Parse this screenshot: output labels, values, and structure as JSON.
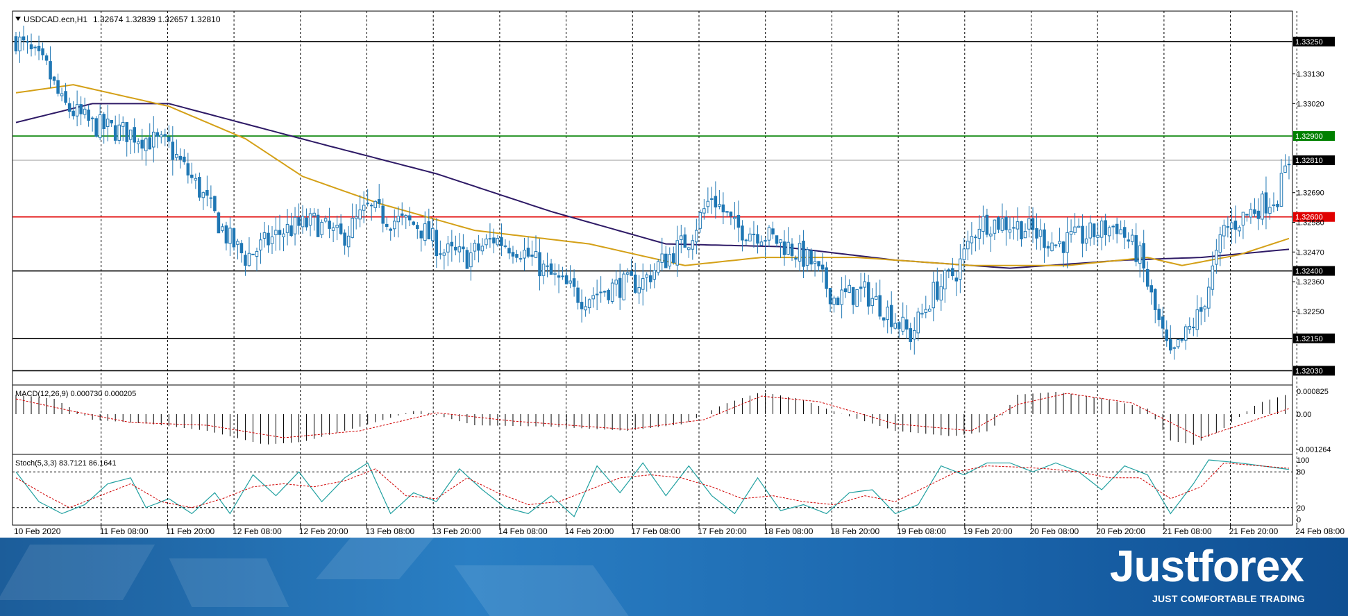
{
  "header": {
    "symbol_text": "USDCAD.ecn,H1",
    "ohlc_text": "1.32674 1.32839 1.32657 1.32810"
  },
  "colors": {
    "bull": "#ffffff",
    "bear": "#1f77b4",
    "candle_outline": "#1f77b4",
    "ma_slow": "#2e1a66",
    "ma_fast": "#d4a017",
    "support_resistance": "#000000",
    "green_level": "#008000",
    "red_level": "#e00000",
    "macd_signal": "#d00000",
    "stoch_main": "#20a0a0",
    "stoch_signal": "#d00000"
  },
  "chart_data": [
    {
      "type": "candlestick",
      "title": "USDCAD.ecn,H1",
      "ylim": [
        1.3199,
        1.3335
      ],
      "y_ticks": [
        "1.33250",
        "1.33130",
        "1.33020",
        "1.32900",
        "1.32810",
        "1.32690",
        "1.32580",
        "1.32470",
        "1.32360",
        "1.32250",
        "1.32150",
        "1.32030"
      ],
      "x_tick_labels": [
        "10 Feb 2020",
        "11 Feb 08:00",
        "11 Feb 20:00",
        "12 Feb 08:00",
        "12 Feb 20:00",
        "13 Feb 08:00",
        "13 Feb 20:00",
        "14 Feb 08:00",
        "14 Feb 20:00",
        "17 Feb 08:00",
        "17 Feb 20:00",
        "18 Feb 08:00",
        "18 Feb 20:00",
        "19 Feb 08:00",
        "19 Feb 20:00",
        "20 Feb 08:00",
        "20 Feb 20:00",
        "21 Feb 08:00",
        "21 Feb 20:00",
        "24 Feb 08:00"
      ],
      "horizontal_levels": [
        {
          "value": 1.3325,
          "label": "1.33250",
          "color": "#000000"
        },
        {
          "value": 1.329,
          "label": "1.32900",
          "color": "#008000"
        },
        {
          "value": 1.3281,
          "label": "1.32810",
          "color": "#999999"
        },
        {
          "value": 1.326,
          "label": "1.32600",
          "color": "#e00000"
        },
        {
          "value": 1.324,
          "label": "1.32400",
          "color": "#000000"
        },
        {
          "value": 1.3215,
          "label": "1.32150",
          "color": "#000000"
        },
        {
          "value": 1.3203,
          "label": "1.32030",
          "color": "#000000"
        }
      ],
      "price_anchors": [
        [
          0,
          1.3326
        ],
        [
          8,
          1.3315
        ],
        [
          12,
          1.3302
        ],
        [
          20,
          1.3294
        ],
        [
          30,
          1.3291
        ],
        [
          40,
          1.3286
        ],
        [
          48,
          1.327
        ],
        [
          55,
          1.3253
        ],
        [
          60,
          1.3245
        ],
        [
          70,
          1.3255
        ],
        [
          78,
          1.3258
        ],
        [
          85,
          1.3252
        ],
        [
          92,
          1.3263
        ],
        [
          98,
          1.3259
        ],
        [
          105,
          1.3257
        ],
        [
          112,
          1.3247
        ],
        [
          118,
          1.3245
        ],
        [
          125,
          1.3252
        ],
        [
          132,
          1.3248
        ],
        [
          140,
          1.3238
        ],
        [
          148,
          1.323
        ],
        [
          156,
          1.3234
        ],
        [
          164,
          1.3236
        ],
        [
          168,
          1.3242
        ],
        [
          176,
          1.3252
        ],
        [
          182,
          1.3268
        ],
        [
          188,
          1.3256
        ],
        [
          195,
          1.3254
        ],
        [
          202,
          1.3249
        ],
        [
          208,
          1.3243
        ],
        [
          214,
          1.323
        ],
        [
          222,
          1.3232
        ],
        [
          228,
          1.3225
        ],
        [
          234,
          1.3216
        ],
        [
          240,
          1.3232
        ],
        [
          246,
          1.324
        ],
        [
          252,
          1.3258
        ],
        [
          258,
          1.3258
        ],
        [
          264,
          1.3256
        ],
        [
          272,
          1.325
        ],
        [
          280,
          1.3253
        ],
        [
          288,
          1.3257
        ],
        [
          294,
          1.3245
        ],
        [
          298,
          1.3225
        ],
        [
          302,
          1.3207
        ],
        [
          306,
          1.3216
        ],
        [
          310,
          1.3225
        ],
        [
          316,
          1.3255
        ],
        [
          324,
          1.3263
        ],
        [
          330,
          1.3268
        ],
        [
          333,
          1.3281
        ]
      ],
      "ma_slow_anchors": [
        [
          0,
          1.3295
        ],
        [
          20,
          1.3302
        ],
        [
          40,
          1.3302
        ],
        [
          80,
          1.3287
        ],
        [
          110,
          1.3276
        ],
        [
          140,
          1.3262
        ],
        [
          170,
          1.325
        ],
        [
          200,
          1.3249
        ],
        [
          230,
          1.3244
        ],
        [
          260,
          1.3241
        ],
        [
          290,
          1.3244
        ],
        [
          310,
          1.3245
        ],
        [
          333,
          1.3248
        ]
      ],
      "ma_fast_anchors": [
        [
          0,
          1.3306
        ],
        [
          15,
          1.3309
        ],
        [
          40,
          1.3301
        ],
        [
          60,
          1.3289
        ],
        [
          75,
          1.3275
        ],
        [
          95,
          1.3265
        ],
        [
          120,
          1.3255
        ],
        [
          150,
          1.325
        ],
        [
          175,
          1.3242
        ],
        [
          195,
          1.3245
        ],
        [
          220,
          1.3245
        ],
        [
          250,
          1.3242
        ],
        [
          275,
          1.3242
        ],
        [
          296,
          1.3245
        ],
        [
          305,
          1.3242
        ],
        [
          320,
          1.3246
        ],
        [
          333,
          1.3252
        ]
      ],
      "candle_count": 334
    },
    {
      "type": "bar",
      "title": "MACD(12,26,9) 0.000730 0.000205",
      "ylim": [
        -0.00135,
        0.00095
      ],
      "y_ticks": [
        "0.000825",
        "0.00",
        "-0.001264"
      ],
      "histogram_anchors": [
        [
          0,
          0.0007
        ],
        [
          10,
          0.00055
        ],
        [
          20,
          -0.0002
        ],
        [
          35,
          -0.00035
        ],
        [
          50,
          -0.0006
        ],
        [
          65,
          -0.0011
        ],
        [
          75,
          -0.001
        ],
        [
          90,
          -0.00045
        ],
        [
          105,
          0.00015
        ],
        [
          120,
          -0.0004
        ],
        [
          140,
          -0.00045
        ],
        [
          160,
          -0.0006
        ],
        [
          175,
          -0.00035
        ],
        [
          185,
          0.00035
        ],
        [
          195,
          0.0008
        ],
        [
          205,
          0.00055
        ],
        [
          215,
          5e-05
        ],
        [
          230,
          -0.0006
        ],
        [
          245,
          -0.0008
        ],
        [
          255,
          -0.0006
        ],
        [
          262,
          0.0007
        ],
        [
          272,
          0.0008
        ],
        [
          285,
          0.00055
        ],
        [
          296,
          0.0002
        ],
        [
          302,
          -0.00095
        ],
        [
          308,
          -0.0011
        ],
        [
          315,
          -0.0006
        ],
        [
          325,
          0.0004
        ],
        [
          333,
          0.00073
        ]
      ],
      "signal_anchors": [
        [
          0,
          0.00055
        ],
        [
          15,
          0.0001
        ],
        [
          30,
          -0.0003
        ],
        [
          50,
          -0.0004
        ],
        [
          70,
          -0.00085
        ],
        [
          90,
          -0.0006
        ],
        [
          110,
          5e-05
        ],
        [
          130,
          -0.00025
        ],
        [
          160,
          -0.00055
        ],
        [
          180,
          -0.0002
        ],
        [
          195,
          0.00065
        ],
        [
          210,
          0.00045
        ],
        [
          230,
          -0.00035
        ],
        [
          250,
          -0.0006
        ],
        [
          262,
          0.00035
        ],
        [
          275,
          0.00075
        ],
        [
          292,
          0.0004
        ],
        [
          302,
          -0.0003
        ],
        [
          310,
          -0.00085
        ],
        [
          320,
          -0.0004
        ],
        [
          333,
          0.0002
        ]
      ]
    },
    {
      "type": "line",
      "title": "Stoch(5,3,3) 83.7121 86.1641",
      "ylim": [
        0,
        100
      ],
      "y_ticks": [
        "100",
        "80",
        "20",
        "0"
      ],
      "levels": [
        80,
        20
      ],
      "main_anchors": [
        [
          0,
          80
        ],
        [
          6,
          30
        ],
        [
          12,
          10
        ],
        [
          18,
          25
        ],
        [
          24,
          60
        ],
        [
          30,
          70
        ],
        [
          34,
          20
        ],
        [
          40,
          35
        ],
        [
          46,
          10
        ],
        [
          52,
          45
        ],
        [
          56,
          10
        ],
        [
          62,
          75
        ],
        [
          68,
          40
        ],
        [
          74,
          80
        ],
        [
          80,
          30
        ],
        [
          86,
          70
        ],
        [
          92,
          95
        ],
        [
          98,
          10
        ],
        [
          104,
          45
        ],
        [
          110,
          30
        ],
        [
          116,
          85
        ],
        [
          122,
          50
        ],
        [
          128,
          20
        ],
        [
          134,
          10
        ],
        [
          140,
          40
        ],
        [
          146,
          5
        ],
        [
          152,
          90
        ],
        [
          158,
          45
        ],
        [
          164,
          95
        ],
        [
          170,
          40
        ],
        [
          176,
          90
        ],
        [
          182,
          40
        ],
        [
          188,
          10
        ],
        [
          194,
          70
        ],
        [
          200,
          15
        ],
        [
          206,
          25
        ],
        [
          212,
          10
        ],
        [
          218,
          45
        ],
        [
          224,
          50
        ],
        [
          230,
          10
        ],
        [
          236,
          25
        ],
        [
          242,
          90
        ],
        [
          248,
          75
        ],
        [
          254,
          95
        ],
        [
          260,
          95
        ],
        [
          266,
          80
        ],
        [
          272,
          95
        ],
        [
          278,
          80
        ],
        [
          284,
          50
        ],
        [
          290,
          90
        ],
        [
          296,
          75
        ],
        [
          302,
          10
        ],
        [
          308,
          60
        ],
        [
          312,
          100
        ],
        [
          320,
          95
        ],
        [
          333,
          84
        ]
      ],
      "signal_anchors": [
        [
          0,
          70
        ],
        [
          8,
          40
        ],
        [
          14,
          20
        ],
        [
          22,
          40
        ],
        [
          30,
          60
        ],
        [
          38,
          30
        ],
        [
          46,
          20
        ],
        [
          54,
          35
        ],
        [
          62,
          55
        ],
        [
          70,
          60
        ],
        [
          78,
          55
        ],
        [
          86,
          65
        ],
        [
          94,
          85
        ],
        [
          102,
          40
        ],
        [
          110,
          35
        ],
        [
          118,
          70
        ],
        [
          126,
          45
        ],
        [
          134,
          25
        ],
        [
          142,
          30
        ],
        [
          150,
          50
        ],
        [
          158,
          70
        ],
        [
          166,
          75
        ],
        [
          174,
          70
        ],
        [
          182,
          55
        ],
        [
          190,
          35
        ],
        [
          198,
          40
        ],
        [
          206,
          30
        ],
        [
          214,
          25
        ],
        [
          222,
          40
        ],
        [
          230,
          30
        ],
        [
          238,
          55
        ],
        [
          246,
          80
        ],
        [
          254,
          90
        ],
        [
          262,
          88
        ],
        [
          270,
          85
        ],
        [
          278,
          80
        ],
        [
          286,
          70
        ],
        [
          294,
          70
        ],
        [
          302,
          35
        ],
        [
          310,
          55
        ],
        [
          316,
          95
        ],
        [
          333,
          86
        ]
      ]
    }
  ],
  "brand": {
    "name": "Justforex",
    "slogan": "JUST COMFORTABLE TRADING"
  }
}
